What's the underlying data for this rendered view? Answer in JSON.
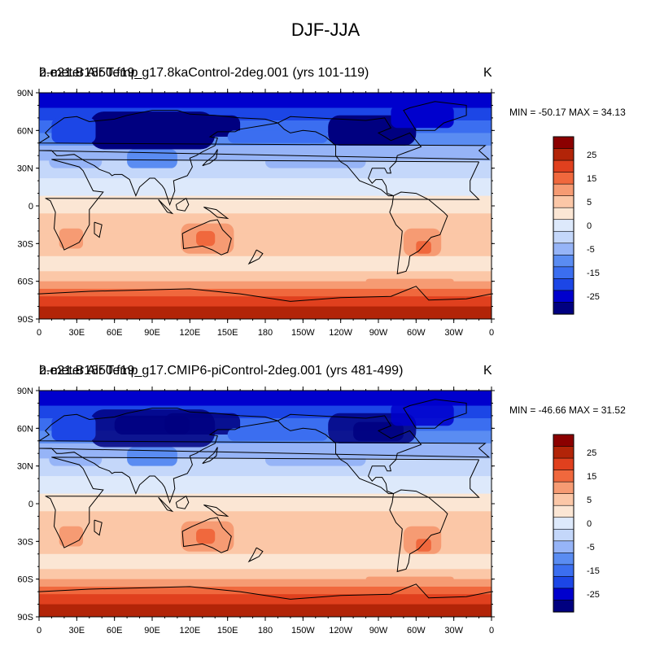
{
  "figure": {
    "title": "DJF-JJA"
  },
  "panels": [
    {
      "title_left": "2-meter Air Temp",
      "title_case": "b.e21.B1850.f19_g17.8kaControl-2deg.001 (yrs 101-119)",
      "units": "K",
      "minmax": "MIN = -50.17 MAX =  34.13"
    },
    {
      "title_left": "2-meter Air Temp",
      "title_case": "b.e21.B1850.f19_g17.CMIP6-piControl-2deg.001 (yrs 481-499)",
      "units": "K",
      "minmax": "MIN = -46.66 MAX =  31.52"
    }
  ],
  "axes": {
    "lat_ticks": [
      "90N",
      "60N",
      "30N",
      "0",
      "30S",
      "60S",
      "90S"
    ],
    "lon_ticks": [
      "0",
      "30E",
      "60E",
      "90E",
      "120E",
      "150E",
      "180",
      "150W",
      "120W",
      "90W",
      "60W",
      "30W",
      "0"
    ]
  },
  "colorbar": {
    "labels": [
      "25",
      "15",
      "5",
      "0",
      "-5",
      "-15",
      "-25"
    ],
    "levels": [
      -30,
      -25,
      -20,
      -15,
      -10,
      -5,
      -1,
      1,
      5,
      10,
      15,
      20,
      25,
      30
    ],
    "colors": [
      "#000080",
      "#0000cd",
      "#1c46e6",
      "#3b6ef0",
      "#5a8cf2",
      "#96b4f7",
      "#c4d7fa",
      "#dde9fb",
      "#fbe6d4",
      "#fbc7a7",
      "#f69b73",
      "#f0683d",
      "#e0401e",
      "#b22408",
      "#8b0000"
    ]
  }
}
